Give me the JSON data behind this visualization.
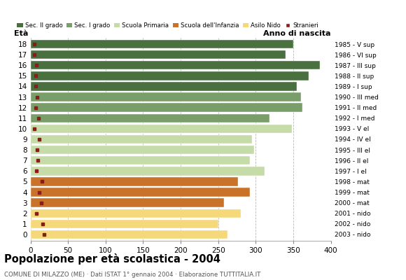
{
  "ages": [
    18,
    17,
    16,
    15,
    14,
    13,
    12,
    11,
    10,
    9,
    8,
    7,
    6,
    5,
    4,
    3,
    2,
    1,
    0
  ],
  "years": [
    "1985 - V sup",
    "1986 - VI sup",
    "1987 - III sup",
    "1988 - II sup",
    "1989 - I sup",
    "1990 - III med",
    "1991 - II med",
    "1992 - I med",
    "1993 - V el",
    "1994 - IV el",
    "1995 - III el",
    "1996 - II el",
    "1997 - I el",
    "1998 - mat",
    "1999 - mat",
    "2000 - mat",
    "2001 - nido",
    "2002 - nido",
    "2003 - nido"
  ],
  "bar_values": [
    350,
    340,
    385,
    370,
    355,
    360,
    362,
    318,
    348,
    295,
    298,
    292,
    312,
    276,
    292,
    258,
    280,
    250,
    262
  ],
  "stranieri": [
    5,
    5,
    8,
    7,
    7,
    9,
    7,
    11,
    5,
    12,
    9,
    10,
    8,
    15,
    12,
    14,
    8,
    16,
    18
  ],
  "bar_colors": [
    "#4a7040",
    "#4a7040",
    "#4a7040",
    "#4a7040",
    "#4a7040",
    "#7a9e6a",
    "#7a9e6a",
    "#7a9e6a",
    "#c5dba8",
    "#c5dba8",
    "#c5dba8",
    "#c5dba8",
    "#c5dba8",
    "#c8722a",
    "#c8722a",
    "#c8722a",
    "#f5d87a",
    "#f5d87a",
    "#f5d87a"
  ],
  "stranieri_color": "#8b1a1a",
  "legend_colors": [
    "#4a7040",
    "#7a9e6a",
    "#c5dba8",
    "#c8722a",
    "#f5d87a",
    "#8b1a1a"
  ],
  "legend_labels": [
    "Sec. II grado",
    "Sec. I grado",
    "Scuola Primaria",
    "Scuola dell'Infanzia",
    "Asilo Nido",
    "Stranieri"
  ],
  "title": "Popolazione per età scolastica - 2004",
  "subtitle": "COMUNE DI MILAZZO (ME) · Dati ISTAT 1° gennaio 2004 · Elaborazione TUTTITALIA.IT",
  "xlabel_eta": "Età",
  "xlabel_anno": "Anno di nascita",
  "xlim": [
    0,
    400
  ],
  "xticks": [
    0,
    50,
    100,
    150,
    200,
    250,
    300,
    350,
    400
  ],
  "background_color": "#ffffff",
  "grid_color": "#b8b8b8",
  "bar_height": 0.82
}
